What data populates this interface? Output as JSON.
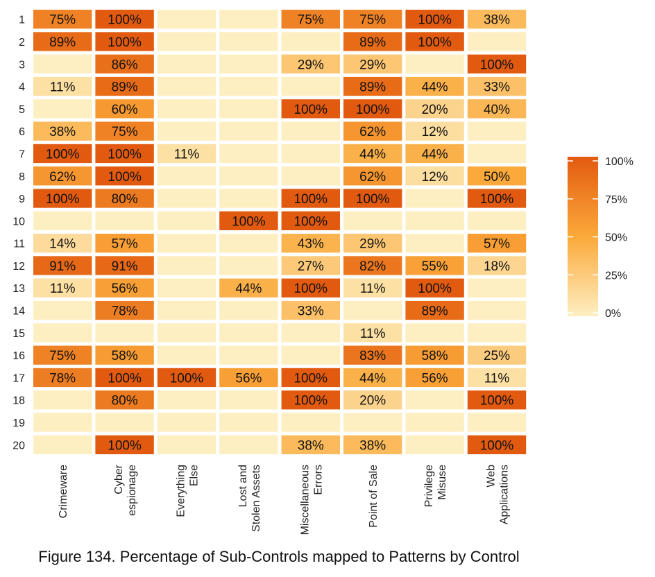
{
  "chart_data": {
    "type": "heatmap",
    "title": "Figure 134. Percentage of Sub-Controls mapped to Patterns by Control",
    "xlabel": "",
    "ylabel": "",
    "rows": [
      "1",
      "2",
      "3",
      "4",
      "5",
      "6",
      "7",
      "8",
      "9",
      "10",
      "11",
      "12",
      "13",
      "14",
      "15",
      "16",
      "17",
      "18",
      "19",
      "20"
    ],
    "columns": [
      [
        "Crimeware"
      ],
      [
        "Cyber",
        "espionage"
      ],
      [
        "Everything",
        "Else"
      ],
      [
        "Lost and",
        "Stolen Assets"
      ],
      [
        "Miscellaneous",
        "Errors"
      ],
      [
        "Point of Sale"
      ],
      [
        "Privilege",
        "Misuse"
      ],
      [
        "Web",
        "Applications"
      ]
    ],
    "values": [
      [
        75,
        100,
        0,
        0,
        75,
        75,
        100,
        38
      ],
      [
        89,
        100,
        0,
        0,
        0,
        89,
        100,
        0
      ],
      [
        0,
        86,
        0,
        0,
        29,
        29,
        0,
        100
      ],
      [
        11,
        89,
        0,
        0,
        0,
        89,
        44,
        33
      ],
      [
        0,
        60,
        0,
        0,
        100,
        100,
        20,
        40
      ],
      [
        38,
        75,
        0,
        0,
        0,
        62,
        12,
        0
      ],
      [
        100,
        100,
        11,
        0,
        0,
        44,
        44,
        0
      ],
      [
        62,
        100,
        0,
        0,
        0,
        62,
        12,
        50
      ],
      [
        100,
        80,
        0,
        0,
        100,
        100,
        0,
        100
      ],
      [
        0,
        0,
        0,
        100,
        100,
        0,
        0,
        0
      ],
      [
        14,
        57,
        0,
        0,
        43,
        29,
        0,
        57
      ],
      [
        91,
        91,
        0,
        0,
        27,
        82,
        55,
        18
      ],
      [
        11,
        56,
        0,
        44,
        100,
        11,
        100,
        0
      ],
      [
        0,
        78,
        0,
        0,
        33,
        0,
        89,
        0
      ],
      [
        0,
        0,
        0,
        0,
        0,
        11,
        0,
        0
      ],
      [
        75,
        58,
        0,
        0,
        0,
        83,
        58,
        25
      ],
      [
        78,
        100,
        100,
        56,
        100,
        44,
        56,
        11
      ],
      [
        0,
        80,
        0,
        0,
        100,
        20,
        0,
        100
      ],
      [
        0,
        0,
        0,
        0,
        0,
        0,
        0,
        0
      ],
      [
        0,
        100,
        0,
        0,
        38,
        38,
        0,
        100
      ]
    ],
    "labels": [
      [
        "75%",
        "100%",
        "",
        "",
        "75%",
        "75%",
        "100%",
        "38%"
      ],
      [
        "89%",
        "100%",
        "",
        "",
        "",
        "89%",
        "100%",
        ""
      ],
      [
        "",
        "86%",
        "",
        "",
        "29%",
        "29%",
        "",
        "100%"
      ],
      [
        "11%",
        "89%",
        "",
        "",
        "",
        "89%",
        "44%",
        "33%"
      ],
      [
        "",
        "60%",
        "",
        "",
        "100%",
        "100%",
        "20%",
        "40%"
      ],
      [
        "38%",
        "75%",
        "",
        "",
        "",
        "62%",
        "12%",
        ""
      ],
      [
        "100%",
        "100%",
        "11%",
        "",
        "",
        "44%",
        "44%",
        ""
      ],
      [
        "62%",
        "100%",
        "",
        "",
        "",
        "62%",
        "12%",
        "50%"
      ],
      [
        "100%",
        "80%",
        "",
        "",
        "100%",
        "100%",
        "",
        "100%"
      ],
      [
        "",
        "",
        "",
        "100%",
        "100%",
        "",
        "",
        ""
      ],
      [
        "14%",
        "57%",
        "",
        "",
        "43%",
        "29%",
        "",
        "57%"
      ],
      [
        "91%",
        "91%",
        "",
        "",
        "27%",
        "82%",
        "55%",
        "18%"
      ],
      [
        "11%",
        "56%",
        "",
        "44%",
        "100%",
        "11%",
        "100%",
        ""
      ],
      [
        "",
        "78%",
        "",
        "",
        "33%",
        "",
        "89%",
        ""
      ],
      [
        "",
        "",
        "",
        "",
        "",
        "11%",
        "",
        ""
      ],
      [
        "75%",
        "58%",
        "",
        "",
        "",
        "83%",
        "58%",
        "25%"
      ],
      [
        "78%",
        "100%",
        "100%",
        "56%",
        "100%",
        "44%",
        "56%",
        "11%"
      ],
      [
        "",
        "80%",
        "",
        "",
        "100%",
        "20%",
        "",
        "100%"
      ],
      [
        "",
        "",
        "",
        "",
        "",
        "",
        "",
        ""
      ],
      [
        "",
        "100%",
        "",
        "",
        "38%",
        "38%",
        "",
        "100%"
      ]
    ],
    "value_range": [
      0,
      100
    ],
    "legend": {
      "placement": "right",
      "ticks": [
        100,
        75,
        50,
        25,
        0
      ],
      "tick_labels": [
        "100%",
        "75%",
        "50%",
        "25%",
        "0%"
      ]
    },
    "colors": {
      "low": "#fdefc2",
      "mid": "#fba93a",
      "high": "#e25a0f"
    },
    "grid": false
  }
}
